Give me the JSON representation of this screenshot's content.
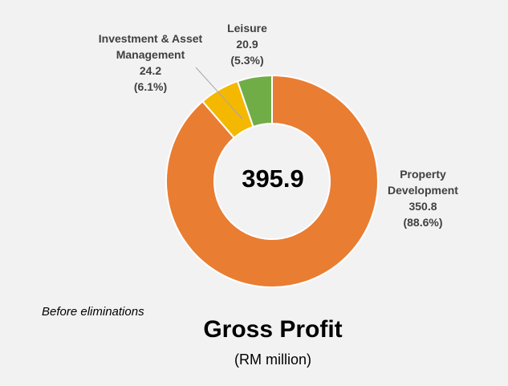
{
  "chart_data": {
    "type": "pie",
    "variant": "donut",
    "title": "Gross Profit",
    "subtitle": "(RM million)",
    "note": "Before eliminations",
    "center_total": "395.9",
    "slices": [
      {
        "name_lines": [
          "Property",
          "Development"
        ],
        "value": 350.8,
        "value_label": "350.8",
        "pct_label": "(88.6%)",
        "color": "#E97D32"
      },
      {
        "name_lines": [
          "Investment & Asset",
          "Management"
        ],
        "value": 24.2,
        "value_label": "24.2",
        "pct_label": "(6.1%)",
        "color": "#F5B800"
      },
      {
        "name_lines": [
          "Leisure"
        ],
        "value": 20.9,
        "value_label": "20.9",
        "pct_label": "(5.3%)",
        "color": "#70AD47"
      }
    ],
    "legend": "none",
    "grid": false
  }
}
